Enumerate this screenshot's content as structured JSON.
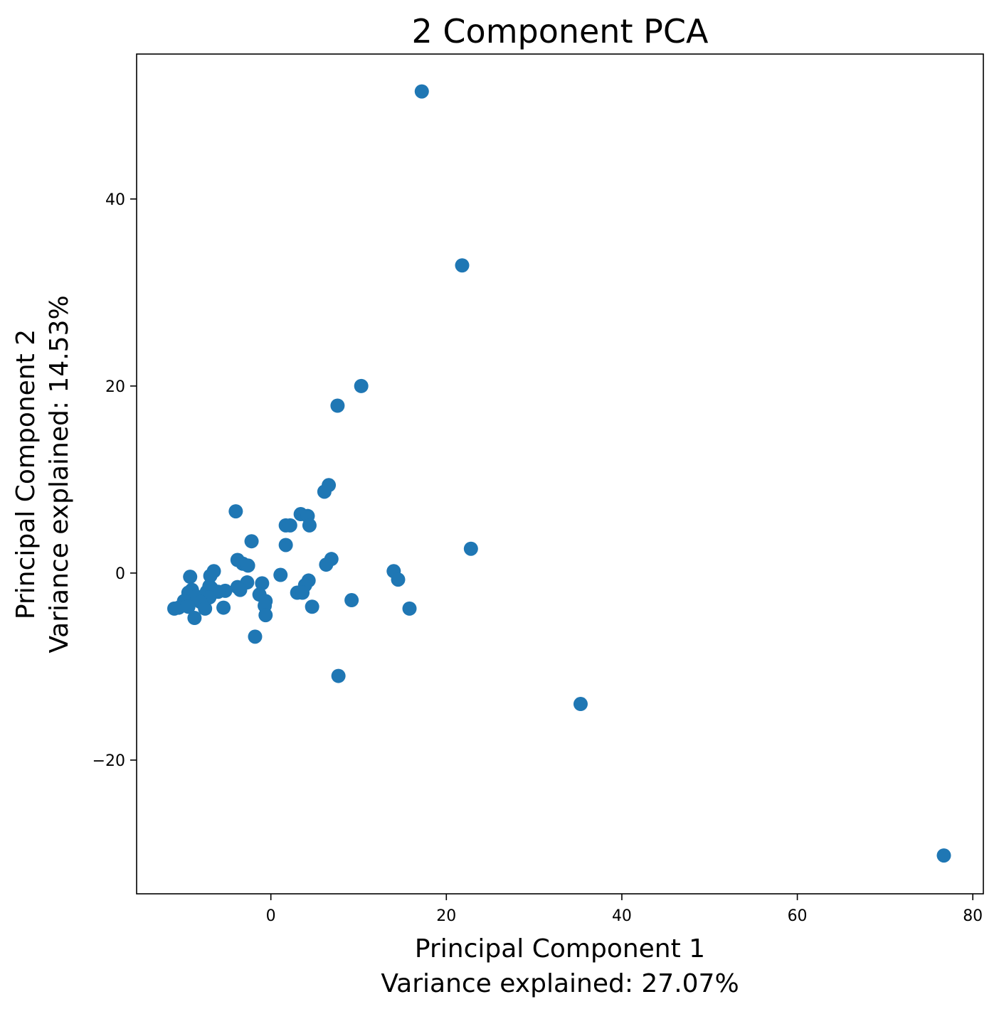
{
  "chart_data": {
    "type": "scatter",
    "title": "2 Component PCA",
    "xlabel": [
      "Principal Component 1",
      "Variance explained: 27.07%"
    ],
    "ylabel": [
      "Principal Component 2",
      "Variance explained: 14.53%"
    ],
    "xlim": [
      -15.3,
      81.2
    ],
    "ylim": [
      -34.3,
      55.5
    ],
    "xticks": [
      0,
      20,
      40,
      60,
      80
    ],
    "xtick_labels": [
      "0",
      "20",
      "40",
      "60",
      "80"
    ],
    "yticks": [
      -20,
      0,
      20,
      40
    ],
    "ytick_labels": [
      "−20",
      "0",
      "20",
      "40"
    ],
    "grid": false,
    "marker_color": "#1f77b4",
    "points": [
      [
        17.2,
        51.5
      ],
      [
        21.8,
        32.9
      ],
      [
        10.3,
        20.0
      ],
      [
        7.6,
        17.9
      ],
      [
        6.6,
        9.4
      ],
      [
        6.1,
        8.7
      ],
      [
        -4.0,
        6.6
      ],
      [
        3.4,
        6.3
      ],
      [
        4.2,
        6.1
      ],
      [
        1.7,
        5.1
      ],
      [
        2.2,
        5.1
      ],
      [
        4.4,
        5.1
      ],
      [
        22.8,
        2.6
      ],
      [
        -2.2,
        3.4
      ],
      [
        1.7,
        3.0
      ],
      [
        6.9,
        1.5
      ],
      [
        -3.8,
        1.4
      ],
      [
        6.3,
        0.9
      ],
      [
        -3.2,
        1.0
      ],
      [
        -2.6,
        0.8
      ],
      [
        -6.5,
        0.2
      ],
      [
        14.0,
        0.2
      ],
      [
        1.1,
        -0.2
      ],
      [
        -9.2,
        -0.4
      ],
      [
        -6.9,
        -0.3
      ],
      [
        14.5,
        -0.7
      ],
      [
        4.3,
        -0.8
      ],
      [
        -1.0,
        -1.1
      ],
      [
        3.9,
        -1.3
      ],
      [
        -2.7,
        -1.0
      ],
      [
        -7.0,
        -1.4
      ],
      [
        -3.8,
        -1.5
      ],
      [
        -3.5,
        -1.8
      ],
      [
        -5.2,
        -1.9
      ],
      [
        -6.8,
        -1.6
      ],
      [
        -6.0,
        -2.0
      ],
      [
        -9.0,
        -1.8
      ],
      [
        -7.3,
        -2.0
      ],
      [
        3.0,
        -2.1
      ],
      [
        3.6,
        -2.1
      ],
      [
        -1.3,
        -2.3
      ],
      [
        -9.4,
        -2.1
      ],
      [
        -7.0,
        -2.6
      ],
      [
        -8.5,
        -2.5
      ],
      [
        9.2,
        -2.9
      ],
      [
        -0.6,
        -3.0
      ],
      [
        -9.9,
        -3.0
      ],
      [
        -8.0,
        -3.1
      ],
      [
        -0.7,
        -3.5
      ],
      [
        -10.5,
        -3.7
      ],
      [
        -7.5,
        -3.8
      ],
      [
        -5.4,
        -3.7
      ],
      [
        -11.0,
        -3.8
      ],
      [
        4.7,
        -3.6
      ],
      [
        15.8,
        -3.8
      ],
      [
        -9.4,
        -3.6
      ],
      [
        -0.6,
        -4.5
      ],
      [
        -8.7,
        -4.8
      ],
      [
        -1.8,
        -6.8
      ],
      [
        7.7,
        -11.0
      ],
      [
        35.3,
        -14.0
      ],
      [
        76.7,
        -30.2
      ]
    ]
  }
}
